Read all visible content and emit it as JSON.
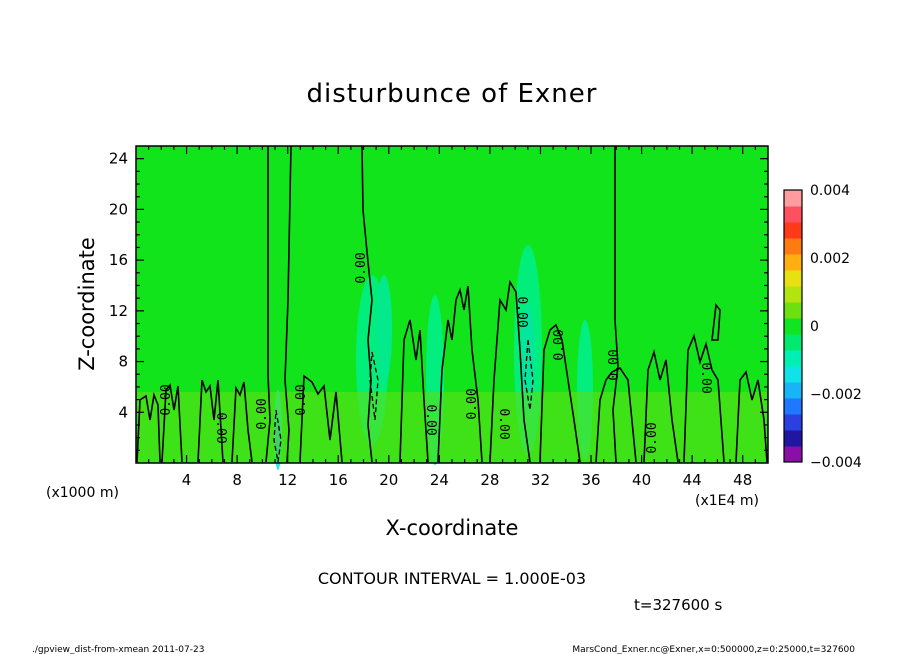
{
  "chart_data": {
    "type": "heatmap",
    "title": "disturbunce of Exner",
    "xlabel": "X-coordinate",
    "ylabel": "Z-coordinate",
    "x_unit_note": "(x1E4 m)",
    "y_unit_note": "(x1000 m)",
    "xlim": [
      0,
      50
    ],
    "ylim": [
      0,
      25
    ],
    "x_ticks": [
      4,
      8,
      12,
      16,
      20,
      24,
      28,
      32,
      36,
      40,
      44,
      48
    ],
    "y_ticks": [
      4,
      8,
      12,
      16,
      20,
      24
    ],
    "colorbar": {
      "min": -0.004,
      "max": 0.004,
      "tick_labels": [
        {
          "value": 0.004,
          "label": "0.004"
        },
        {
          "value": 0.002,
          "label": "0.002"
        },
        {
          "value": 0,
          "label": "0"
        },
        {
          "value": -0.002,
          "label": "−0.002"
        },
        {
          "value": -0.004,
          "label": "−0.004"
        }
      ],
      "colors": [
        "#8a0fa8",
        "#2016a0",
        "#2a40e0",
        "#1f78ff",
        "#18b4f8",
        "#10e2e8",
        "#00f0b4",
        "#00ea70",
        "#10e620",
        "#6ee010",
        "#b4e410",
        "#e8e010",
        "#ffb010",
        "#ff7a10",
        "#ff3a18",
        "#ff5060",
        "#ff9ca0"
      ]
    },
    "background_value": 0,
    "contour_interval_label": "CONTOUR INTERVAL = 1.000E-03",
    "contour_labels": [
      "0.00"
    ],
    "time_label": "t=327600 s"
  },
  "footer": {
    "left": "./gpview_dist-from-xmean  2011-07-23",
    "right": "MarsCond_Exner.nc@Exner,x=0:500000,z=0:25000,t=327600"
  }
}
